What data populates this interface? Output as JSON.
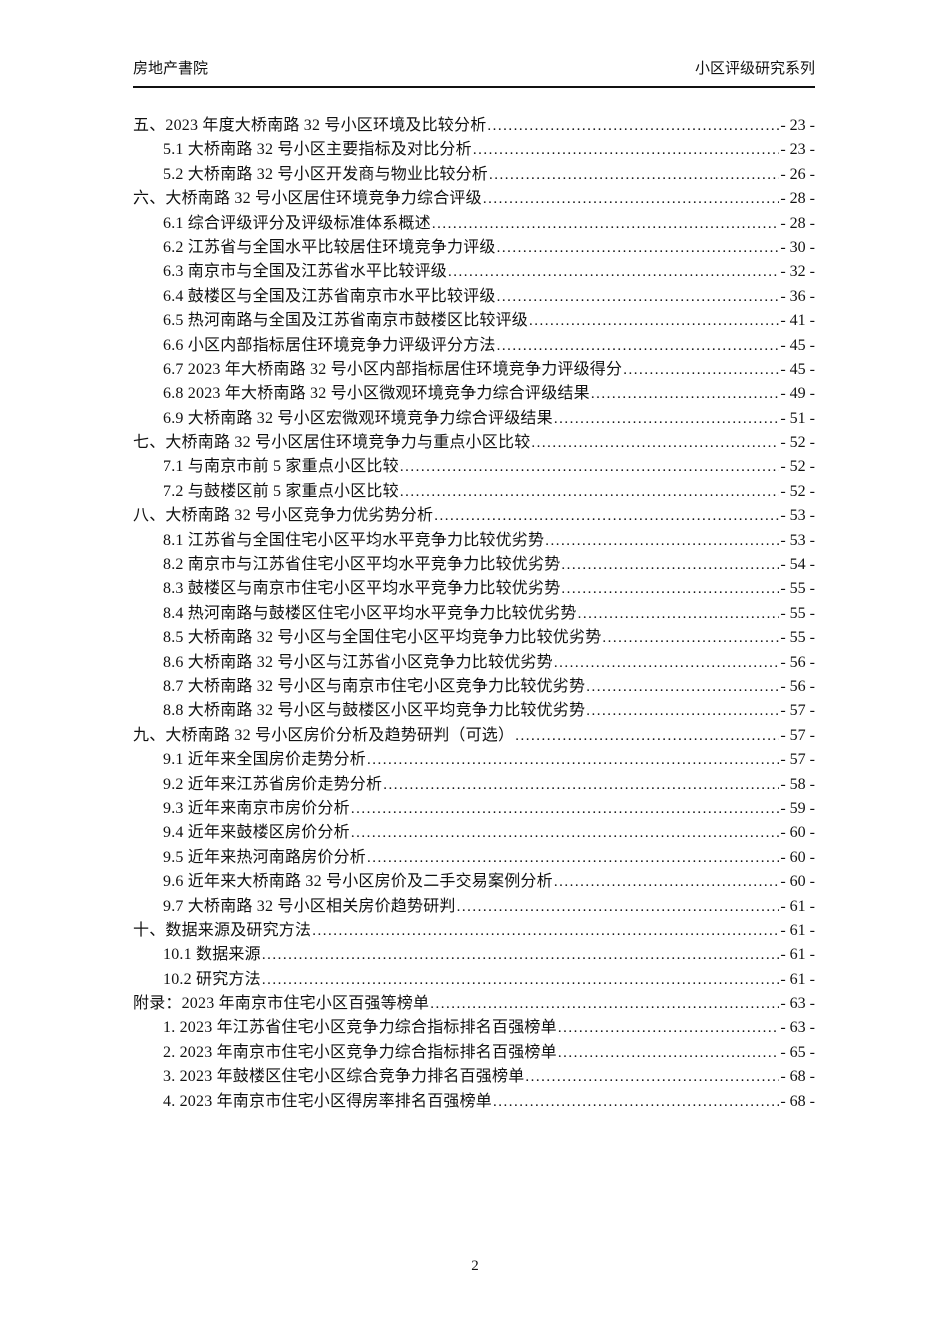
{
  "header": {
    "left": "房地产書院",
    "right": "小区评级研究系列"
  },
  "footer": {
    "page_number": "2"
  },
  "toc": {
    "entries": [
      {
        "level": 1,
        "title": "五、2023 年度大桥南路 32 号小区环境及比较分析",
        "page": "- 23 -"
      },
      {
        "level": 2,
        "title": "5.1 大桥南路 32 号小区主要指标及对比分析",
        "page": "- 23 -"
      },
      {
        "level": 2,
        "title": "5.2 大桥南路 32 号小区开发商与物业比较分析",
        "page": "- 26 -"
      },
      {
        "level": 1,
        "title": "六、大桥南路 32 号小区居住环境竞争力综合评级",
        "page": "- 28 -"
      },
      {
        "level": 2,
        "title": "6.1 综合评级评分及评级标准体系概述",
        "page": "- 28 -"
      },
      {
        "level": 2,
        "title": "6.2 江苏省与全国水平比较居住环境竞争力评级",
        "page": "- 30 -"
      },
      {
        "level": 2,
        "title": "6.3 南京市与全国及江苏省水平比较评级",
        "page": "- 32 -"
      },
      {
        "level": 2,
        "title": "6.4 鼓楼区与全国及江苏省南京市水平比较评级",
        "page": "- 36 -"
      },
      {
        "level": 2,
        "title": "6.5 热河南路与全国及江苏省南京市鼓楼区比较评级",
        "page": "- 41 -"
      },
      {
        "level": 2,
        "title": "6.6 小区内部指标居住环境竞争力评级评分方法",
        "page": "- 45 -"
      },
      {
        "level": 2,
        "title": "6.7 2023 年大桥南路 32 号小区内部指标居住环境竞争力评级得分",
        "page": "- 45 -"
      },
      {
        "level": 2,
        "title": "6.8 2023 年大桥南路 32 号小区微观环境竞争力综合评级结果",
        "page": "- 49 -"
      },
      {
        "level": 2,
        "title": "6.9 大桥南路 32 号小区宏微观环境竞争力综合评级结果",
        "page": "- 51 -"
      },
      {
        "level": 1,
        "title": "七、大桥南路 32 号小区居住环境竞争力与重点小区比较",
        "page": "- 52 -"
      },
      {
        "level": 2,
        "title": "7.1 与南京市前 5 家重点小区比较",
        "page": "- 52 -"
      },
      {
        "level": 2,
        "title": "7.2 与鼓楼区前 5 家重点小区比较",
        "page": "- 52 -"
      },
      {
        "level": 1,
        "title": "八、大桥南路 32 号小区竞争力优劣势分析",
        "page": "- 53 -"
      },
      {
        "level": 2,
        "title": "8.1 江苏省与全国住宅小区平均水平竞争力比较优劣势",
        "page": "- 53 -"
      },
      {
        "level": 2,
        "title": "8.2 南京市与江苏省住宅小区平均水平竞争力比较优劣势",
        "page": "- 54 -"
      },
      {
        "level": 2,
        "title": "8.3 鼓楼区与南京市住宅小区平均水平竞争力比较优劣势",
        "page": "- 55 -"
      },
      {
        "level": 2,
        "title": "8.4 热河南路与鼓楼区住宅小区平均水平竞争力比较优劣势",
        "page": "- 55 -"
      },
      {
        "level": 2,
        "title": "8.5 大桥南路 32 号小区与全国住宅小区平均竞争力比较优劣势",
        "page": "- 55 -"
      },
      {
        "level": 2,
        "title": "8.6 大桥南路 32 号小区与江苏省小区竞争力比较优劣势",
        "page": "- 56 -"
      },
      {
        "level": 2,
        "title": "8.7 大桥南路 32 号小区与南京市住宅小区竞争力比较优劣势",
        "page": "- 56 -"
      },
      {
        "level": 2,
        "title": "8.8 大桥南路 32 号小区与鼓楼区小区平均竞争力比较优劣势",
        "page": "- 57 -"
      },
      {
        "level": 1,
        "title": "九、大桥南路 32 号小区房价分析及趋势研判（可选）",
        "page": "- 57 -"
      },
      {
        "level": 2,
        "title": "9.1 近年来全国房价走势分析",
        "page": "- 57 -"
      },
      {
        "level": 2,
        "title": "9.2 近年来江苏省房价走势分析",
        "page": "- 58 -"
      },
      {
        "level": 2,
        "title": "9.3 近年来南京市房价分析",
        "page": "- 59 -"
      },
      {
        "level": 2,
        "title": "9.4 近年来鼓楼区房价分析",
        "page": "- 60 -"
      },
      {
        "level": 2,
        "title": "9.5 近年来热河南路房价分析",
        "page": "- 60 -"
      },
      {
        "level": 2,
        "title": "9.6 近年来大桥南路 32 号小区房价及二手交易案例分析",
        "page": "- 60 -"
      },
      {
        "level": 2,
        "title": "9.7 大桥南路 32 号小区相关房价趋势研判",
        "page": "- 61 -"
      },
      {
        "level": 1,
        "title": "十、数据来源及研究方法",
        "page": "- 61 -"
      },
      {
        "level": 2,
        "title": "10.1 数据来源",
        "page": "- 61 -"
      },
      {
        "level": 2,
        "title": "10.2 研究方法",
        "page": "- 61 -"
      },
      {
        "level": 1,
        "title": "附录：2023 年南京市住宅小区百强等榜单",
        "page": "- 63 -"
      },
      {
        "level": 2,
        "title": "1. 2023 年江苏省住宅小区竞争力综合指标排名百强榜单",
        "page": "- 63 -"
      },
      {
        "level": 2,
        "title": "2. 2023 年南京市住宅小区竞争力综合指标排名百强榜单",
        "page": "- 65 -"
      },
      {
        "level": 2,
        "title": "3. 2023 年鼓楼区住宅小区综合竞争力排名百强榜单",
        "page": "- 68 -"
      },
      {
        "level": 2,
        "title": "4. 2023 年南京市住宅小区得房率排名百强榜单",
        "page": "- 68 -"
      }
    ]
  }
}
